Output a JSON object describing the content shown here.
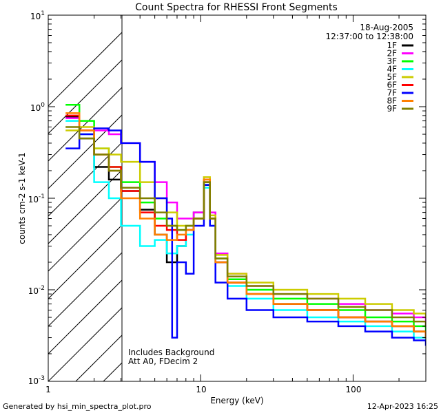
{
  "chart_data": {
    "type": "line",
    "title": "Count Spectra for RHESSI Front Segments",
    "xlabel": "Energy (keV)",
    "ylabel": "counts cm-2 s-1 keV-1",
    "xscale": "log",
    "yscale": "log",
    "xlim": [
      1,
      300
    ],
    "ylim": [
      0.001,
      10
    ],
    "x_tick_labels": [
      "1",
      "10",
      "100"
    ],
    "y_tick_labels": [
      "10^-3",
      "10^-2",
      "10^-1",
      "10^0",
      "10^1"
    ],
    "date": "18-Aug-2005",
    "time_range": "12:37:00 to 12:38:00",
    "annotation_lines": [
      "Includes Background",
      "Att A0, FDecim 2"
    ],
    "hatched_region": {
      "x_from": 1,
      "x_to": 3
    },
    "series": [
      {
        "name": "1F",
        "color": "#000000",
        "points": [
          [
            1.3,
            0.78
          ],
          [
            1.6,
            0.45
          ],
          [
            2.0,
            0.22
          ],
          [
            2.5,
            0.16
          ],
          [
            3.0,
            0.12
          ],
          [
            4.0,
            0.075
          ],
          [
            5.0,
            0.04
          ],
          [
            6.0,
            0.02
          ],
          [
            7.0,
            0.03
          ],
          [
            8.0,
            0.045
          ],
          [
            9.0,
            0.07
          ],
          [
            10.5,
            0.14
          ],
          [
            11.5,
            0.06
          ],
          [
            12.5,
            0.02
          ],
          [
            15,
            0.012
          ],
          [
            20,
            0.009
          ],
          [
            30,
            0.007
          ],
          [
            50,
            0.006
          ],
          [
            80,
            0.005
          ],
          [
            120,
            0.0045
          ],
          [
            180,
            0.004
          ],
          [
            250,
            0.0035
          ],
          [
            300,
            0.003
          ]
        ]
      },
      {
        "name": "2F",
        "color": "#ff00ff",
        "points": [
          [
            1.3,
            0.75
          ],
          [
            1.6,
            0.55
          ],
          [
            2.0,
            0.55
          ],
          [
            2.5,
            0.5
          ],
          [
            3.0,
            0.4
          ],
          [
            4.0,
            0.25
          ],
          [
            5.0,
            0.15
          ],
          [
            6.0,
            0.09
          ],
          [
            7.0,
            0.06
          ],
          [
            8.0,
            0.06
          ],
          [
            9.0,
            0.07
          ],
          [
            10.5,
            0.16
          ],
          [
            11.5,
            0.07
          ],
          [
            12.5,
            0.025
          ],
          [
            15,
            0.015
          ],
          [
            20,
            0.011
          ],
          [
            30,
            0.009
          ],
          [
            50,
            0.008
          ],
          [
            80,
            0.007
          ],
          [
            120,
            0.006
          ],
          [
            180,
            0.0055
          ],
          [
            250,
            0.005
          ],
          [
            300,
            0.004
          ]
        ]
      },
      {
        "name": "3F",
        "color": "#00ff00",
        "points": [
          [
            1.3,
            1.05
          ],
          [
            1.6,
            0.7
          ],
          [
            2.0,
            0.35
          ],
          [
            2.5,
            0.22
          ],
          [
            3.0,
            0.15
          ],
          [
            4.0,
            0.09
          ],
          [
            5.0,
            0.06
          ],
          [
            6.0,
            0.05
          ],
          [
            7.0,
            0.045
          ],
          [
            8.0,
            0.05
          ],
          [
            9.0,
            0.06
          ],
          [
            10.5,
            0.15
          ],
          [
            11.5,
            0.06
          ],
          [
            12.5,
            0.022
          ],
          [
            15,
            0.013
          ],
          [
            20,
            0.01
          ],
          [
            30,
            0.008
          ],
          [
            50,
            0.007
          ],
          [
            80,
            0.006
          ],
          [
            120,
            0.005
          ],
          [
            180,
            0.0045
          ],
          [
            250,
            0.004
          ],
          [
            300,
            0.0035
          ]
        ]
      },
      {
        "name": "4F",
        "color": "#00ffff",
        "points": [
          [
            1.3,
            0.7
          ],
          [
            1.6,
            0.5
          ],
          [
            2.0,
            0.15
          ],
          [
            2.5,
            0.1
          ],
          [
            3.0,
            0.05
          ],
          [
            4.0,
            0.03
          ],
          [
            5.0,
            0.035
          ],
          [
            6.0,
            0.025
          ],
          [
            7.0,
            0.03
          ],
          [
            8.0,
            0.04
          ],
          [
            9.0,
            0.06
          ],
          [
            10.5,
            0.13
          ],
          [
            11.5,
            0.05
          ],
          [
            12.5,
            0.02
          ],
          [
            15,
            0.011
          ],
          [
            20,
            0.008
          ],
          [
            30,
            0.006
          ],
          [
            50,
            0.005
          ],
          [
            80,
            0.0045
          ],
          [
            120,
            0.004
          ],
          [
            180,
            0.0035
          ],
          [
            250,
            0.003
          ],
          [
            300,
            0.0028
          ]
        ]
      },
      {
        "name": "5F",
        "color": "#cccc00",
        "points": [
          [
            1.3,
            0.55
          ],
          [
            1.6,
            0.6
          ],
          [
            2.0,
            0.35
          ],
          [
            2.5,
            0.3
          ],
          [
            3.0,
            0.25
          ],
          [
            4.0,
            0.15
          ],
          [
            5.0,
            0.1
          ],
          [
            6.0,
            0.07
          ],
          [
            7.0,
            0.05
          ],
          [
            8.0,
            0.05
          ],
          [
            9.0,
            0.06
          ],
          [
            10.5,
            0.17
          ],
          [
            11.5,
            0.065
          ],
          [
            12.5,
            0.024
          ],
          [
            15,
            0.015
          ],
          [
            20,
            0.012
          ],
          [
            30,
            0.01
          ],
          [
            50,
            0.009
          ],
          [
            80,
            0.008
          ],
          [
            120,
            0.007
          ],
          [
            180,
            0.006
          ],
          [
            250,
            0.0055
          ],
          [
            300,
            0.005
          ]
        ]
      },
      {
        "name": "6F",
        "color": "#ff0000",
        "points": [
          [
            1.3,
            0.8
          ],
          [
            1.6,
            0.55
          ],
          [
            2.0,
            0.3
          ],
          [
            2.5,
            0.22
          ],
          [
            3.0,
            0.12
          ],
          [
            4.0,
            0.07
          ],
          [
            5.0,
            0.05
          ],
          [
            6.0,
            0.045
          ],
          [
            7.0,
            0.035
          ],
          [
            8.0,
            0.045
          ],
          [
            9.0,
            0.06
          ],
          [
            10.5,
            0.15
          ],
          [
            11.5,
            0.06
          ],
          [
            12.5,
            0.02
          ],
          [
            15,
            0.012
          ],
          [
            20,
            0.009
          ],
          [
            30,
            0.007
          ],
          [
            50,
            0.006
          ],
          [
            80,
            0.005
          ],
          [
            120,
            0.0045
          ],
          [
            180,
            0.004
          ],
          [
            250,
            0.0035
          ],
          [
            300,
            0.003
          ]
        ]
      },
      {
        "name": "7F",
        "color": "#0000ff",
        "points": [
          [
            1.3,
            0.35
          ],
          [
            1.6,
            0.5
          ],
          [
            2.0,
            0.58
          ],
          [
            2.5,
            0.55
          ],
          [
            3.0,
            0.4
          ],
          [
            4.0,
            0.25
          ],
          [
            5.0,
            0.1
          ],
          [
            6.0,
            0.06
          ],
          [
            6.5,
            0.003
          ],
          [
            7.0,
            0.02
          ],
          [
            8.0,
            0.015
          ],
          [
            9.0,
            0.05
          ],
          [
            10.5,
            0.14
          ],
          [
            11.5,
            0.05
          ],
          [
            12.5,
            0.012
          ],
          [
            15,
            0.008
          ],
          [
            20,
            0.006
          ],
          [
            30,
            0.005
          ],
          [
            50,
            0.0045
          ],
          [
            80,
            0.004
          ],
          [
            120,
            0.0035
          ],
          [
            180,
            0.003
          ],
          [
            250,
            0.0028
          ],
          [
            300,
            0.0025
          ]
        ]
      },
      {
        "name": "8F",
        "color": "#ff8000",
        "points": [
          [
            1.3,
            0.85
          ],
          [
            1.6,
            0.55
          ],
          [
            2.0,
            0.3
          ],
          [
            2.5,
            0.2
          ],
          [
            3.0,
            0.1
          ],
          [
            4.0,
            0.06
          ],
          [
            5.0,
            0.04
          ],
          [
            6.0,
            0.035
          ],
          [
            7.0,
            0.04
          ],
          [
            8.0,
            0.045
          ],
          [
            9.0,
            0.06
          ],
          [
            10.5,
            0.16
          ],
          [
            11.5,
            0.06
          ],
          [
            12.5,
            0.02
          ],
          [
            15,
            0.012
          ],
          [
            20,
            0.009
          ],
          [
            30,
            0.007
          ],
          [
            50,
            0.006
          ],
          [
            80,
            0.005
          ],
          [
            120,
            0.0045
          ],
          [
            180,
            0.004
          ],
          [
            250,
            0.0035
          ],
          [
            300,
            0.003
          ]
        ]
      },
      {
        "name": "9F",
        "color": "#808000",
        "points": [
          [
            1.3,
            0.6
          ],
          [
            1.6,
            0.45
          ],
          [
            2.0,
            0.3
          ],
          [
            2.5,
            0.2
          ],
          [
            3.0,
            0.13
          ],
          [
            4.0,
            0.1
          ],
          [
            5.0,
            0.07
          ],
          [
            6.0,
            0.05
          ],
          [
            7.0,
            0.045
          ],
          [
            8.0,
            0.05
          ],
          [
            9.0,
            0.06
          ],
          [
            10.5,
            0.15
          ],
          [
            11.5,
            0.06
          ],
          [
            12.5,
            0.022
          ],
          [
            15,
            0.014
          ],
          [
            20,
            0.011
          ],
          [
            30,
            0.009
          ],
          [
            50,
            0.008
          ],
          [
            80,
            0.0065
          ],
          [
            120,
            0.006
          ],
          [
            180,
            0.005
          ],
          [
            250,
            0.0045
          ],
          [
            300,
            0.004
          ]
        ]
      }
    ]
  },
  "footer": {
    "left": "Generated by hsi_min_spectra_plot.pro",
    "right": "12-Apr-2023 16:25"
  }
}
